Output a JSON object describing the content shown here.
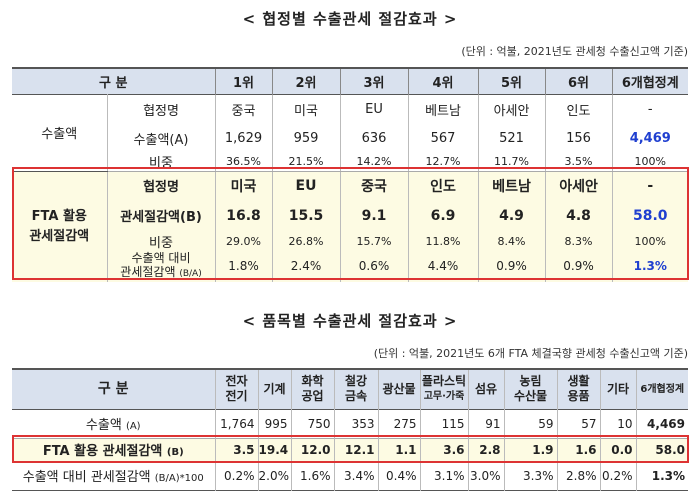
{
  "t1": {
    "title": "< 협정별 수출관세 절감효과 >",
    "unit": "(단위 : 억불, 2021년도 관세청 수출신고액 기준)",
    "header": [
      "구 분",
      "1위",
      "2위",
      "3위",
      "4위",
      "5위",
      "6위",
      "6개협정계"
    ],
    "export_label": "수출액",
    "rows_export": [
      {
        "label": "협정명",
        "cells": [
          "중국",
          "미국",
          "EU",
          "베트남",
          "아세안",
          "인도",
          "-"
        ]
      },
      {
        "label": "수출액(A)",
        "cells": [
          "1,629",
          "959",
          "636",
          "567",
          "521",
          "156",
          "4,469"
        ]
      },
      {
        "label": "비중",
        "cells": [
          "36.5%",
          "21.5%",
          "14.2%",
          "12.7%",
          "11.7%",
          "3.5%",
          "100%"
        ]
      }
    ],
    "fta_label1": "FTA 활용",
    "fta_label2": "관세절감액",
    "rows_fta": [
      {
        "label": "협정명",
        "cells": [
          "미국",
          "EU",
          "중국",
          "인도",
          "베트남",
          "아세안",
          "-"
        ]
      },
      {
        "label": "관세절감액(B)",
        "cells": [
          "16.8",
          "15.5",
          "9.1",
          "6.9",
          "4.9",
          "4.8",
          "58.0"
        ]
      },
      {
        "label": "비중",
        "cells": [
          "29.0%",
          "26.8%",
          "15.7%",
          "11.8%",
          "8.4%",
          "8.3%",
          "100%"
        ]
      },
      {
        "label1": "수출액 대비",
        "label2": "관세절감액",
        "label3": "(B/A)",
        "cells": [
          "1.8%",
          "2.4%",
          "0.6%",
          "4.4%",
          "0.9%",
          "0.9%",
          "1.3%"
        ]
      }
    ]
  },
  "t2": {
    "title": "< 품목별 수출관세 절감효과 >",
    "unit": "(단위 : 억불, 2021년도 6개 FTA 체결국향 관세청 수출신고액 기준)",
    "header_label": "구 분",
    "header": [
      [
        "전자",
        "전기"
      ],
      [
        "기계"
      ],
      [
        "화학",
        "공업"
      ],
      [
        "철강",
        "금속"
      ],
      [
        "광산물"
      ],
      [
        "플라스틱",
        "고무·가죽"
      ],
      [
        "섬유"
      ],
      [
        "농림",
        "수산물"
      ],
      [
        "생활",
        "용품"
      ],
      [
        "기타"
      ],
      [
        "6개협정계"
      ]
    ],
    "rows": [
      {
        "label": "수출액",
        "suffix": "(A)",
        "cells": [
          "1,764",
          "995",
          "750",
          "353",
          "275",
          "115",
          "91",
          "59",
          "57",
          "10",
          "4,469"
        ]
      },
      {
        "label": "FTA 활용 관세절감액",
        "suffix": "(B)",
        "cells": [
          "3.5",
          "19.4",
          "12.0",
          "12.1",
          "1.1",
          "3.6",
          "2.8",
          "1.9",
          "1.6",
          "0.0",
          "58.0"
        ]
      },
      {
        "label": "수출액 대비 관세절감액",
        "suffix": "(B/A)*100",
        "cells": [
          "0.2%",
          "2.0%",
          "1.6%",
          "3.4%",
          "0.4%",
          "3.1%",
          "3.0%",
          "3.3%",
          "2.8%",
          "0.2%",
          "1.3%"
        ]
      }
    ]
  },
  "colors": {
    "header_bg": "#d9e1ee",
    "highlight_bg": "#fdfbe3",
    "highlight_border": "#dd3333",
    "total_blue": "#1f3fd0"
  }
}
